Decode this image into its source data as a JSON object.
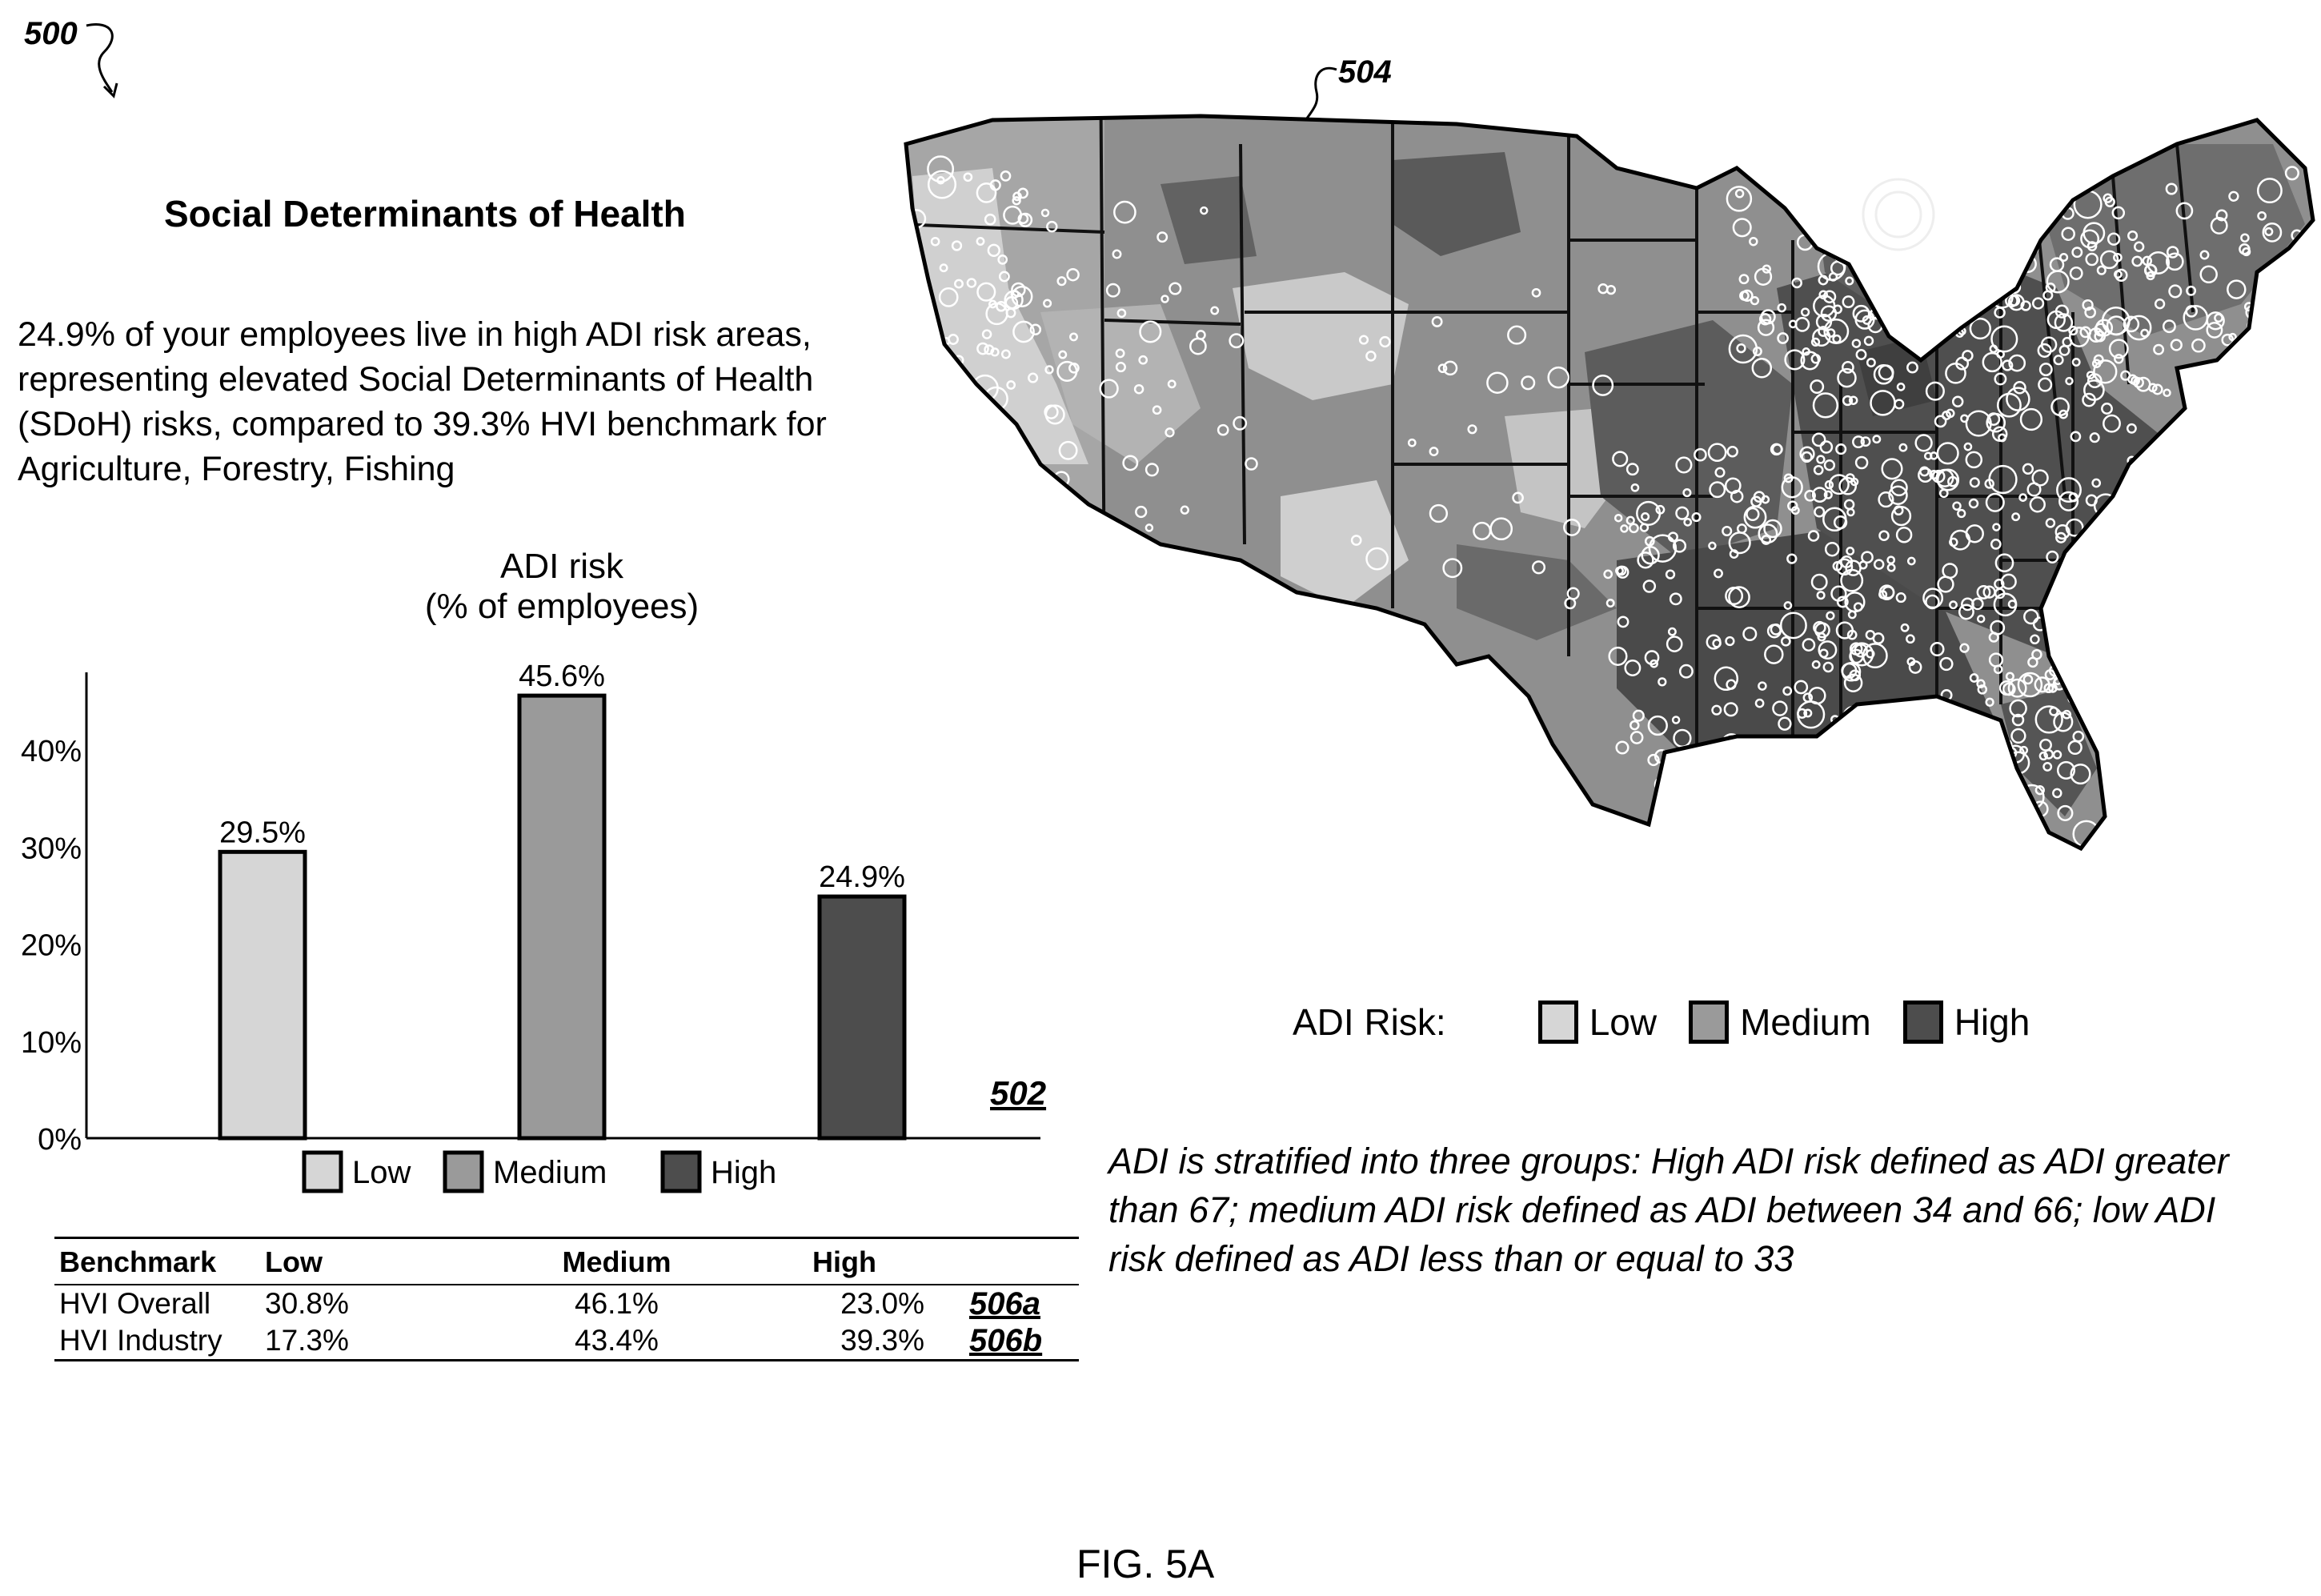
{
  "figure": {
    "ref_main": "500",
    "ref_chart": "502",
    "ref_map": "504",
    "ref_row_overall": "506a",
    "ref_row_industry": "506b",
    "caption": "FIG. 5A"
  },
  "title": "Social Determinants of Health",
  "summary": "24.9% of your employees live in high ADI risk areas, representing elevated Social Determinants of Health (SDoH) risks, compared to 39.3% HVI benchmark for Agriculture, Forestry, Fishing",
  "colors": {
    "low": "#d6d6d6",
    "medium": "#9a9a9a",
    "high": "#4d4d4d"
  },
  "chart_data": {
    "type": "bar",
    "title": "ADI risk",
    "subtitle": "(% of employees)",
    "categories": [
      "Low",
      "Medium",
      "High"
    ],
    "values": [
      29.5,
      45.6,
      24.9
    ],
    "value_labels": [
      "29.5%",
      "45.6%",
      "24.9%"
    ],
    "y_ticks": [
      0,
      10,
      20,
      30,
      40
    ],
    "y_tick_labels": [
      "0%",
      "10%",
      "20%",
      "30%",
      "40%"
    ],
    "ylim": [
      0,
      48
    ],
    "grid": false,
    "legend": {
      "position": "bottom",
      "entries": [
        "Low",
        "Medium",
        "High"
      ]
    }
  },
  "benchmark_table": {
    "headers": [
      "Benchmark",
      "Low",
      "Medium",
      "High"
    ],
    "rows": [
      {
        "name": "HVI Overall",
        "low": "30.8%",
        "medium": "46.1%",
        "high": "23.0%"
      },
      {
        "name": "HVI Industry",
        "low": "17.3%",
        "medium": "43.4%",
        "high": "39.3%"
      }
    ]
  },
  "map": {
    "legend_label": "ADI Risk:",
    "legend_entries": [
      "Low",
      "Medium",
      "High"
    ]
  },
  "adi_note": "ADI is stratified into three groups: High ADI risk defined as ADI greater than 67; medium ADI risk defined as ADI between 34 and 66; low ADI risk defined as ADI less than or equal to 33"
}
